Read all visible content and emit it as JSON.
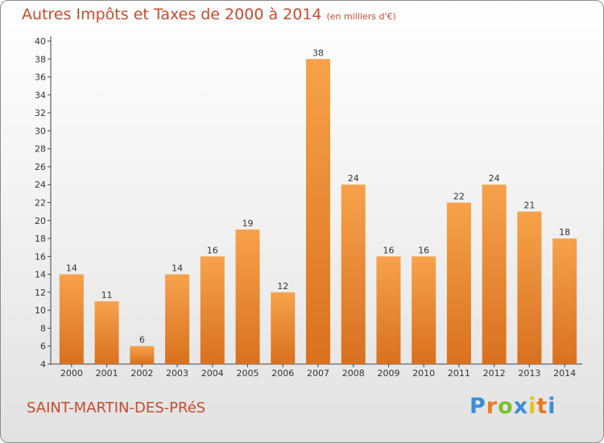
{
  "title": "Autres Impôts et Taxes de 2000 à 2014",
  "subtitle": "(en milliers d'€)",
  "commune": "SAINT-MARTIN-DES-PRéS",
  "logo": {
    "letters": [
      "P",
      "r",
      "o",
      "x",
      "i",
      "t",
      "i"
    ],
    "colors": [
      "#3a8fd6",
      "#e57d1f",
      "#7cc030",
      "#3a8fd6",
      "#e5c21f",
      "#e57d1f",
      "#3a8fd6"
    ]
  },
  "chart_data": {
    "type": "bar",
    "categories": [
      "2000",
      "2001",
      "2002",
      "2003",
      "2004",
      "2005",
      "2006",
      "2007",
      "2008",
      "2009",
      "2010",
      "2011",
      "2012",
      "2013",
      "2014"
    ],
    "values": [
      14,
      11,
      6,
      14,
      16,
      19,
      12,
      38,
      24,
      16,
      16,
      22,
      24,
      21,
      18
    ],
    "ylim": [
      4,
      40
    ],
    "yticks": [
      4,
      6,
      8,
      10,
      12,
      14,
      16,
      18,
      20,
      22,
      24,
      26,
      28,
      30,
      32,
      34,
      36,
      38,
      40
    ],
    "grid": false,
    "bar_color_top": "#f7a24b",
    "bar_color_bottom": "#d9711f"
  }
}
